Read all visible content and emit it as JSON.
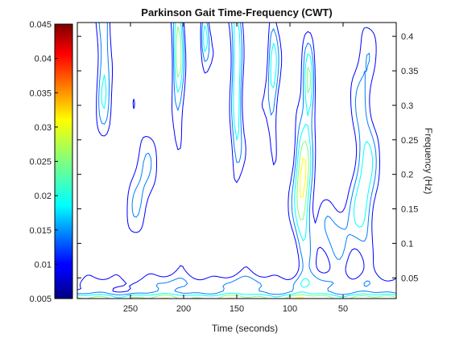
{
  "chart_data": {
    "type": "heatmap",
    "title": "Parkinson Gait Time-Frequency (CWT)",
    "xlabel": "Time (seconds)",
    "ylabel": "Frequency (Hz)",
    "mirrored": true,
    "xlim": [
      300,
      0
    ],
    "ylim": [
      0.02,
      0.42
    ],
    "x_ticks": [
      250,
      200,
      150,
      100,
      50
    ],
    "y_ticks": [
      0.05,
      0.1,
      0.15,
      0.2,
      0.25,
      0.3,
      0.35,
      0.4
    ],
    "x_tick_labels": [
      "250",
      "200",
      "150",
      "100",
      "50"
    ],
    "y_tick_labels": [
      "0.05",
      "0.1",
      "0.15",
      "0.2",
      "0.25",
      "0.3",
      "0.35",
      "0.4"
    ],
    "colorbar": {
      "colormap": "jet",
      "range": [
        0.005,
        0.045
      ],
      "ticks": [
        0.005,
        0.01,
        0.015,
        0.02,
        0.025,
        0.03,
        0.035,
        0.04,
        0.045
      ],
      "tick_labels": [
        "0.005",
        "0.01",
        "0.015",
        "0.02",
        "0.025",
        "0.03",
        "0.035",
        "0.04",
        "0.045"
      ]
    },
    "contour_levels": [
      0.01,
      0.015,
      0.02,
      0.025,
      0.03,
      0.035,
      0.04
    ],
    "components": [
      {
        "t": 30,
        "f": 0.22,
        "st": 8,
        "sf": 0.12,
        "a": 0.018
      },
      {
        "t": 88,
        "f": 0.18,
        "st": 6,
        "sf": 0.08,
        "a": 0.026
      },
      {
        "t": 82,
        "f": 0.33,
        "st": 4,
        "sf": 0.04,
        "a": 0.024
      },
      {
        "t": 116,
        "f": 0.35,
        "st": 4,
        "sf": 0.1,
        "a": 0.016
      },
      {
        "t": 150,
        "f": 0.34,
        "st": 4,
        "sf": 0.09,
        "a": 0.024
      },
      {
        "t": 205,
        "f": 0.38,
        "st": 4,
        "sf": 0.07,
        "a": 0.026
      },
      {
        "t": 180,
        "f": 0.4,
        "st": 3,
        "sf": 0.03,
        "a": 0.02
      },
      {
        "t": 275,
        "f": 0.37,
        "st": 5,
        "sf": 0.07,
        "a": 0.02
      },
      {
        "t": 240,
        "f": 0.2,
        "st": 10,
        "sf": 0.08,
        "a": 0.01
      },
      {
        "t": 150,
        "f": 0.04,
        "st": 120,
        "sf": 0.012,
        "a": 0.012
      },
      {
        "t": 60,
        "f": 0.12,
        "st": 15,
        "sf": 0.04,
        "a": 0.012
      }
    ]
  }
}
